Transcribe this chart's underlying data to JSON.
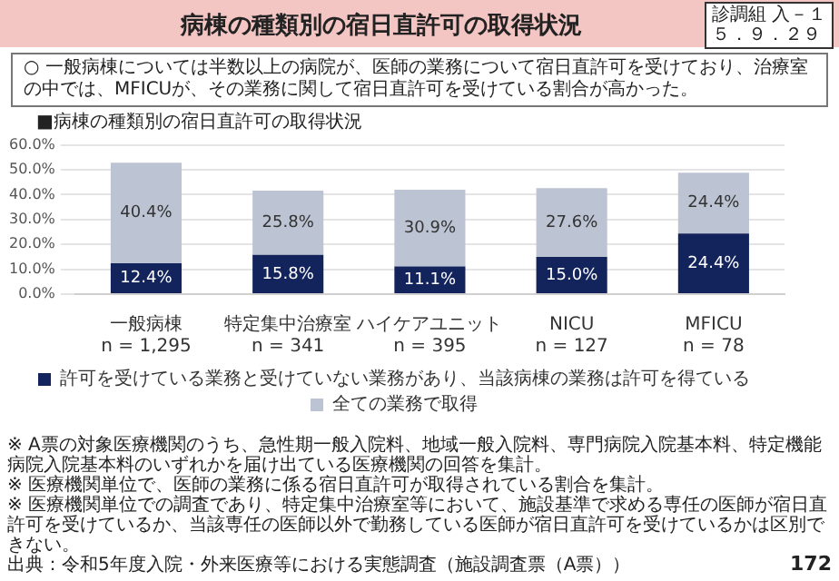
{
  "chart_data": {
    "type": "bar",
    "title": "病棟の種類別の宿日直許可の取得状況",
    "subtitle": "■病棟の種類別の宿日直許可の取得状況",
    "categories": [
      "一般病棟\nn = 1,295",
      "特定集中治療室\nn = 341",
      "ハイケアユニット\nn = 395",
      "NICU\nn = 127",
      "MFICU\nn = 78"
    ],
    "stacked": true,
    "series": [
      {
        "name": "許可を受けている業務と受けていない業務があり、当該病棟の業務は許可を得ている",
        "color": "#13235b",
        "values": [
          12.4,
          15.8,
          11.1,
          15.0,
          24.4
        ],
        "value_labels": [
          "12.4%",
          "15.8%",
          "11.1%",
          "15.0%",
          "24.4%"
        ]
      },
      {
        "name": "全ての業務で取得",
        "color": "#bcc3d3",
        "values": [
          40.4,
          25.8,
          30.9,
          27.6,
          24.4
        ],
        "value_labels": [
          "40.4%",
          "25.8%",
          "30.9%",
          "27.6%",
          "24.4%"
        ]
      }
    ],
    "ylim": [
      0,
      60
    ],
    "yticks": [
      {
        "value": 0,
        "label": "0.0%"
      },
      {
        "value": 10,
        "label": "10.0%"
      },
      {
        "value": 20,
        "label": "20.0%"
      },
      {
        "value": 30,
        "label": "30.0%"
      },
      {
        "value": 40,
        "label": "40.0%"
      },
      {
        "value": 50,
        "label": "50.0%"
      },
      {
        "value": 60,
        "label": "60.0%"
      }
    ],
    "grid": "y",
    "legend": "bottom",
    "annotations": [
      "診調組 入－１",
      "５．９．２９",
      "○ 一般病棟については半数以上の病院が、医師の業務について宿日直許可を受けており、治療室の中では、MFICUが、その業務に関して宿日直許可を受けている割合が高かった。",
      "※ A票の対象医療機関のうち、急性期一般入院料、地域一般入院料、専門病院入院基本料、特定機能病院入院基本料のいずれかを届け出ている医療機関の回答を集計。",
      "※ 医療機関単位で、医師の業務に係る宿日直許可が取得されている割合を集計。",
      "※ 医療機関単位での調査であり、特定集中治療室等において、施設基準で求める専任の医師が宿日直許可を受けているか、当該専任の医師以外で勤務している医師が宿日直許可を受けているかは区別できない。",
      "出典：令和5年度入院・外来医療等における実態調査（施設調査票（A票））",
      "172"
    ]
  }
}
